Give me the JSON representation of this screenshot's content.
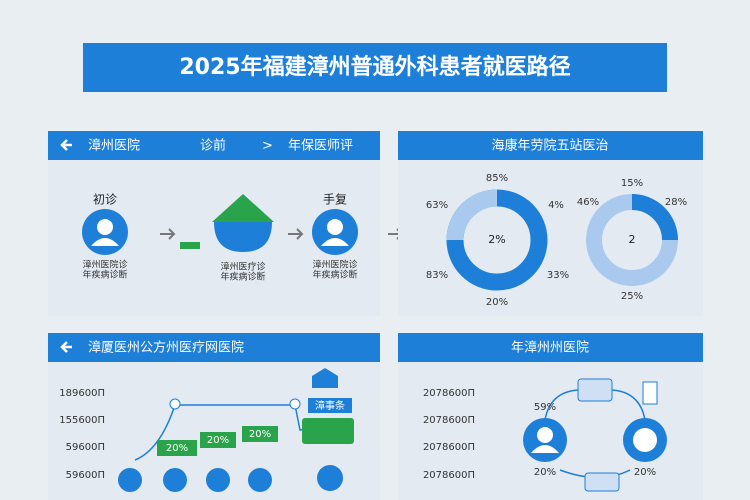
{
  "header": {
    "title": "2025年福建漳州普通外科患者就医路径"
  },
  "panels": [
    {
      "header": {
        "left": "漳州医院",
        "middle": "诊前",
        "separator": ">",
        "right": "年保医师评"
      },
      "nodes": [
        {
          "label": "初诊",
          "caption": "漳州医院诊",
          "caption2": "年疾病诊断"
        },
        {
          "label": "",
          "caption": "漳州医疗诊",
          "caption2": "年疾病诊断"
        },
        {
          "label": "手复",
          "caption": "漳州医院诊",
          "caption2": "年疾病诊断"
        }
      ]
    },
    {
      "header": {
        "title": "海康年劳院五站医治"
      },
      "donuts": [
        {
          "center": "2%",
          "labels": [
            "85%",
            "63%",
            "4%",
            "83%",
            "33%",
            "20%"
          ]
        },
        {
          "center": "2",
          "labels": [
            "15%",
            "46%",
            "28%",
            "25%"
          ]
        }
      ]
    },
    {
      "header": {
        "title": "漳厦医州公方州医疗网医院"
      },
      "axis": [
        "189600П",
        "155600П",
        "59600П",
        "59600П"
      ],
      "badges": [
        "20%",
        "20%",
        "20%"
      ],
      "tag": "漳事条"
    },
    {
      "header": {
        "title": "年漳州州医院"
      },
      "axis": [
        "2078600П",
        "2078600П",
        "2078600П",
        "2078600П"
      ],
      "labels": [
        "59%",
        "20%",
        "20%"
      ]
    }
  ]
}
